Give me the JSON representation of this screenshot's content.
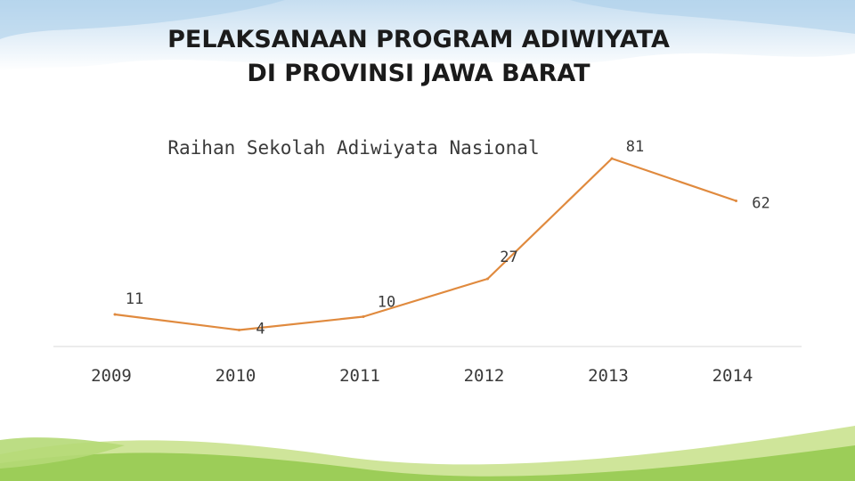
{
  "slide": {
    "title_line1": "PELAKSANAAN PROGRAM ADIWIYATA",
    "title_line2": "DI PROVINSI JAWA BARAT"
  },
  "theme": {
    "line_color": "#e08a3e",
    "sky_color": "#cfe4f3",
    "grass_light": "#c7e08a",
    "grass_dark": "#8cc04a"
  },
  "chart_data": {
    "type": "line",
    "title": "Raihan Sekolah Adiwiyata Nasional",
    "categories": [
      "2009",
      "2010",
      "2011",
      "2012",
      "2013",
      "2014"
    ],
    "series": [
      {
        "values": [
          11,
          4,
          10,
          27,
          81,
          62
        ]
      }
    ],
    "data_labels": [
      "11",
      "4",
      "10",
      "27",
      "81",
      "62"
    ],
    "ylim": [
      0,
      90
    ],
    "grid": false,
    "legend": "none"
  }
}
